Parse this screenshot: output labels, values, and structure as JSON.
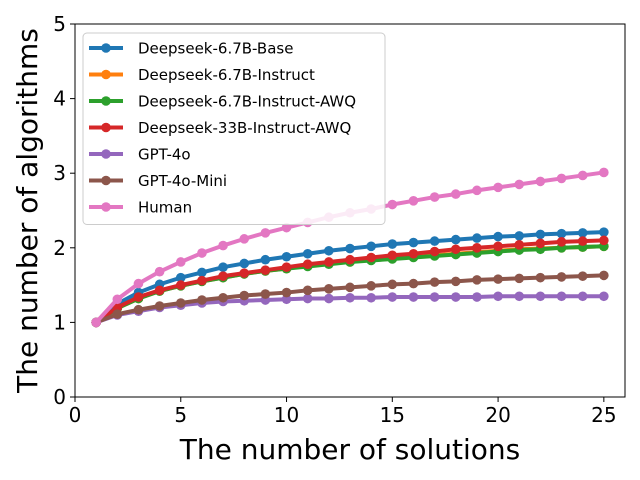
{
  "chart_data": {
    "type": "line",
    "title": "",
    "xlabel": "The number of solutions",
    "ylabel": "The number of algorithms",
    "xlim": [
      0,
      26
    ],
    "ylim": [
      0,
      5
    ],
    "xticks": [
      0,
      5,
      10,
      15,
      20,
      25
    ],
    "yticks": [
      0,
      1,
      2,
      3,
      4,
      5
    ],
    "grid": false,
    "legend_position": "top-left",
    "x": [
      1,
      2,
      3,
      4,
      5,
      6,
      7,
      8,
      9,
      10,
      11,
      12,
      13,
      14,
      15,
      16,
      17,
      18,
      19,
      20,
      21,
      22,
      23,
      24,
      25
    ],
    "series": [
      {
        "name": "Deepseek-6.7B-Base",
        "color": "#1f77b4",
        "values": [
          1.0,
          1.25,
          1.4,
          1.51,
          1.6,
          1.67,
          1.74,
          1.79,
          1.84,
          1.88,
          1.92,
          1.96,
          1.99,
          2.02,
          2.05,
          2.07,
          2.09,
          2.11,
          2.13,
          2.15,
          2.16,
          2.18,
          2.19,
          2.2,
          2.21
        ]
      },
      {
        "name": "Deepseek-6.7B-Instruct",
        "color": "#ff7f0e",
        "values": [
          1.0,
          1.19,
          1.32,
          1.42,
          1.49,
          1.55,
          1.6,
          1.65,
          1.69,
          1.72,
          1.76,
          1.79,
          1.81,
          1.84,
          1.86,
          1.88,
          1.9,
          1.92,
          1.94,
          1.96,
          1.98,
          1.99,
          2.0,
          2.01,
          2.02
        ]
      },
      {
        "name": "Deepseek-6.7B-Instruct-AWQ",
        "color": "#2ca02c",
        "values": [
          1.0,
          1.19,
          1.32,
          1.42,
          1.49,
          1.55,
          1.6,
          1.65,
          1.69,
          1.72,
          1.75,
          1.78,
          1.81,
          1.83,
          1.85,
          1.87,
          1.89,
          1.91,
          1.93,
          1.95,
          1.97,
          1.98,
          2.0,
          2.01,
          2.02
        ]
      },
      {
        "name": "Deepseek-33B-Instruct-AWQ",
        "color": "#d62728",
        "values": [
          1.0,
          1.2,
          1.34,
          1.43,
          1.5,
          1.56,
          1.62,
          1.66,
          1.7,
          1.74,
          1.78,
          1.81,
          1.84,
          1.87,
          1.9,
          1.92,
          1.95,
          1.98,
          2.0,
          2.02,
          2.04,
          2.06,
          2.08,
          2.09,
          2.1
        ]
      },
      {
        "name": "GPT-4o",
        "color": "#9467bd",
        "values": [
          1.0,
          1.1,
          1.15,
          1.2,
          1.23,
          1.26,
          1.28,
          1.29,
          1.3,
          1.31,
          1.32,
          1.32,
          1.33,
          1.33,
          1.34,
          1.34,
          1.34,
          1.34,
          1.34,
          1.35,
          1.35,
          1.35,
          1.35,
          1.35,
          1.35
        ]
      },
      {
        "name": "GPT-4o-Mini",
        "color": "#8c564b",
        "values": [
          1.0,
          1.11,
          1.17,
          1.22,
          1.26,
          1.3,
          1.33,
          1.36,
          1.38,
          1.4,
          1.43,
          1.45,
          1.47,
          1.49,
          1.51,
          1.52,
          1.54,
          1.55,
          1.57,
          1.58,
          1.59,
          1.6,
          1.61,
          1.62,
          1.63
        ]
      },
      {
        "name": "Human",
        "color": "#e377c2",
        "values": [
          1.0,
          1.31,
          1.52,
          1.68,
          1.81,
          1.93,
          2.03,
          2.12,
          2.2,
          2.27,
          2.34,
          2.41,
          2.47,
          2.52,
          2.58,
          2.63,
          2.68,
          2.72,
          2.77,
          2.81,
          2.85,
          2.89,
          2.93,
          2.97,
          3.01
        ]
      }
    ]
  }
}
